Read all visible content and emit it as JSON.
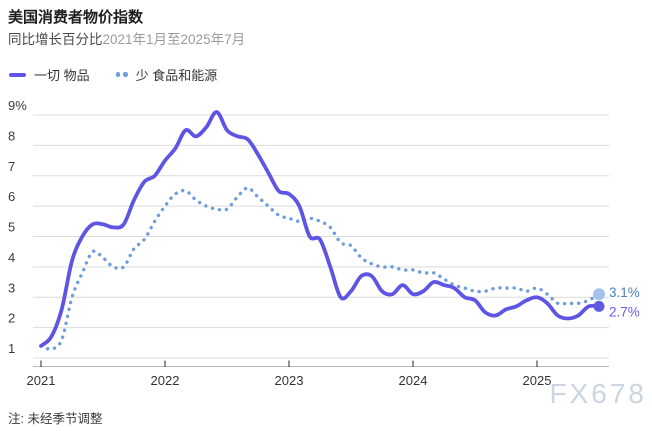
{
  "header": {
    "title": "美国消费者物价指数",
    "subtitle_label": "同比增长百分比",
    "subtitle_range": "2021年1月至2025年7月"
  },
  "legend": [
    {
      "label": "一切 物品",
      "style": "solid",
      "color": "#5f55e4"
    },
    {
      "label": "少 食品和能源",
      "style": "dotted",
      "color": "#6e9ddb"
    }
  ],
  "note": "注: 未经季节调整",
  "watermark": "FX678",
  "chart_data": {
    "type": "line",
    "title": "美国消费者物价指数",
    "subtitle": "同比增长百分比2021年1月至2025年7月",
    "x_start": "2021-01",
    "x_end": "2025-07",
    "x_step": "month",
    "xlabel": "",
    "ylabel": "",
    "ylim": [
      1,
      9
    ],
    "grid": "horizontal",
    "legend_position": "top-left",
    "y_ticks": [
      {
        "value": 9,
        "label": "9%"
      },
      {
        "value": 8,
        "label": "8"
      },
      {
        "value": 7,
        "label": "7"
      },
      {
        "value": 6,
        "label": "6"
      },
      {
        "value": 5,
        "label": "5"
      },
      {
        "value": 4,
        "label": "4"
      },
      {
        "value": 3,
        "label": "3"
      },
      {
        "value": 2,
        "label": "2"
      },
      {
        "value": 1,
        "label": "1"
      }
    ],
    "x_ticks": [
      {
        "value": 2021,
        "label": "2021"
      },
      {
        "value": 2022,
        "label": "2022"
      },
      {
        "value": 2023,
        "label": "2023"
      },
      {
        "value": 2024,
        "label": "2024"
      },
      {
        "value": 2025,
        "label": "2025"
      }
    ],
    "series": [
      {
        "name": "一切 物品",
        "style": "solid",
        "color": "#5f55e4",
        "end_label": "2.7%",
        "end_label_color": "#6a5ce8",
        "end_dot_color": "#6058e2",
        "values": [
          1.4,
          1.7,
          2.6,
          4.2,
          5.0,
          5.4,
          5.4,
          5.3,
          5.4,
          6.2,
          6.8,
          7.0,
          7.5,
          7.9,
          8.5,
          8.3,
          8.6,
          9.1,
          8.5,
          8.3,
          8.2,
          7.7,
          7.1,
          6.5,
          6.4,
          6.0,
          5.0,
          4.9,
          4.0,
          3.0,
          3.2,
          3.7,
          3.7,
          3.2,
          3.1,
          3.4,
          3.1,
          3.2,
          3.5,
          3.4,
          3.3,
          3.0,
          2.9,
          2.5,
          2.4,
          2.6,
          2.7,
          2.9,
          3.0,
          2.8,
          2.4,
          2.3,
          2.4,
          2.7,
          2.7
        ]
      },
      {
        "name": "少 食品和能源",
        "style": "dotted",
        "color": "#6e9ddb",
        "end_label": "3.1%",
        "end_label_color": "#4b80c2",
        "end_dot_color": "#a4c2e9",
        "values": [
          1.4,
          1.3,
          1.6,
          3.0,
          3.8,
          4.5,
          4.3,
          4.0,
          4.0,
          4.6,
          4.9,
          5.5,
          6.0,
          6.4,
          6.5,
          6.2,
          6.0,
          5.9,
          5.9,
          6.3,
          6.6,
          6.3,
          6.0,
          5.7,
          5.6,
          5.5,
          5.6,
          5.5,
          5.3,
          4.8,
          4.7,
          4.3,
          4.1,
          4.0,
          4.0,
          3.9,
          3.9,
          3.8,
          3.8,
          3.6,
          3.4,
          3.3,
          3.2,
          3.2,
          3.3,
          3.3,
          3.3,
          3.2,
          3.3,
          3.1,
          2.8,
          2.8,
          2.8,
          2.9,
          3.1
        ]
      }
    ]
  }
}
